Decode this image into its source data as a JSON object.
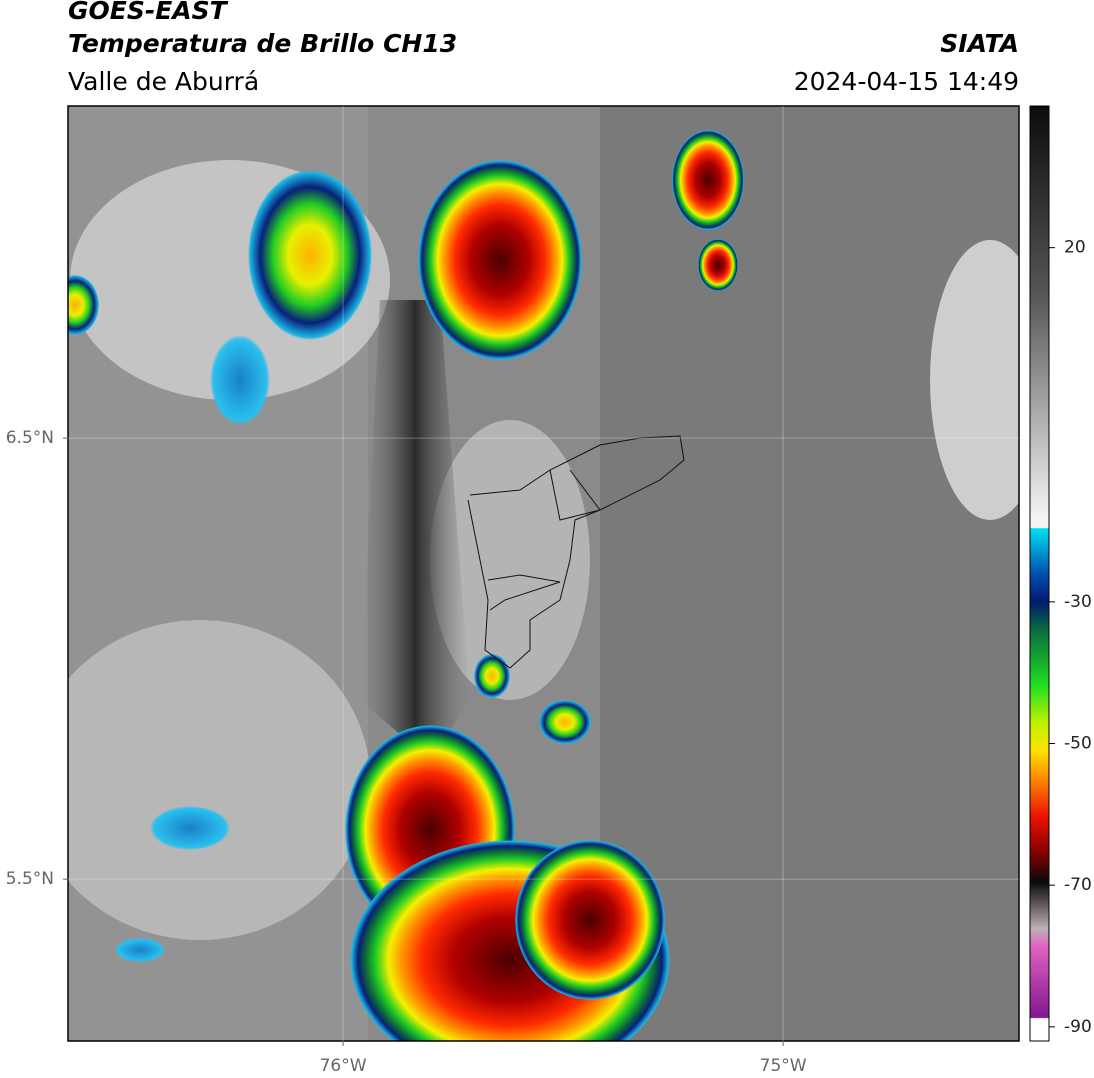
{
  "map": {
    "title": "GOES-EAST",
    "subtitle": "Temperatura de Brillo CH13",
    "region": "Valle de Aburrá",
    "source": "SIATA",
    "timestamp": "2024-04-15 14:49",
    "xlim": [
      -76.625,
      -74.464
    ],
    "ylim": [
      5.133,
      7.253
    ],
    "xticks": [
      {
        "value": -76,
        "label": "76°W"
      },
      {
        "value": -75,
        "label": "75°W"
      }
    ],
    "yticks": [
      {
        "value": 6.5,
        "label": "6.5°N"
      },
      {
        "value": 5.5,
        "label": "5.5°N"
      }
    ],
    "grid": true,
    "colorbar": {
      "clim": [
        -92,
        40
      ],
      "ticks": [
        20,
        -30,
        -50,
        -70,
        -90
      ]
    }
  }
}
